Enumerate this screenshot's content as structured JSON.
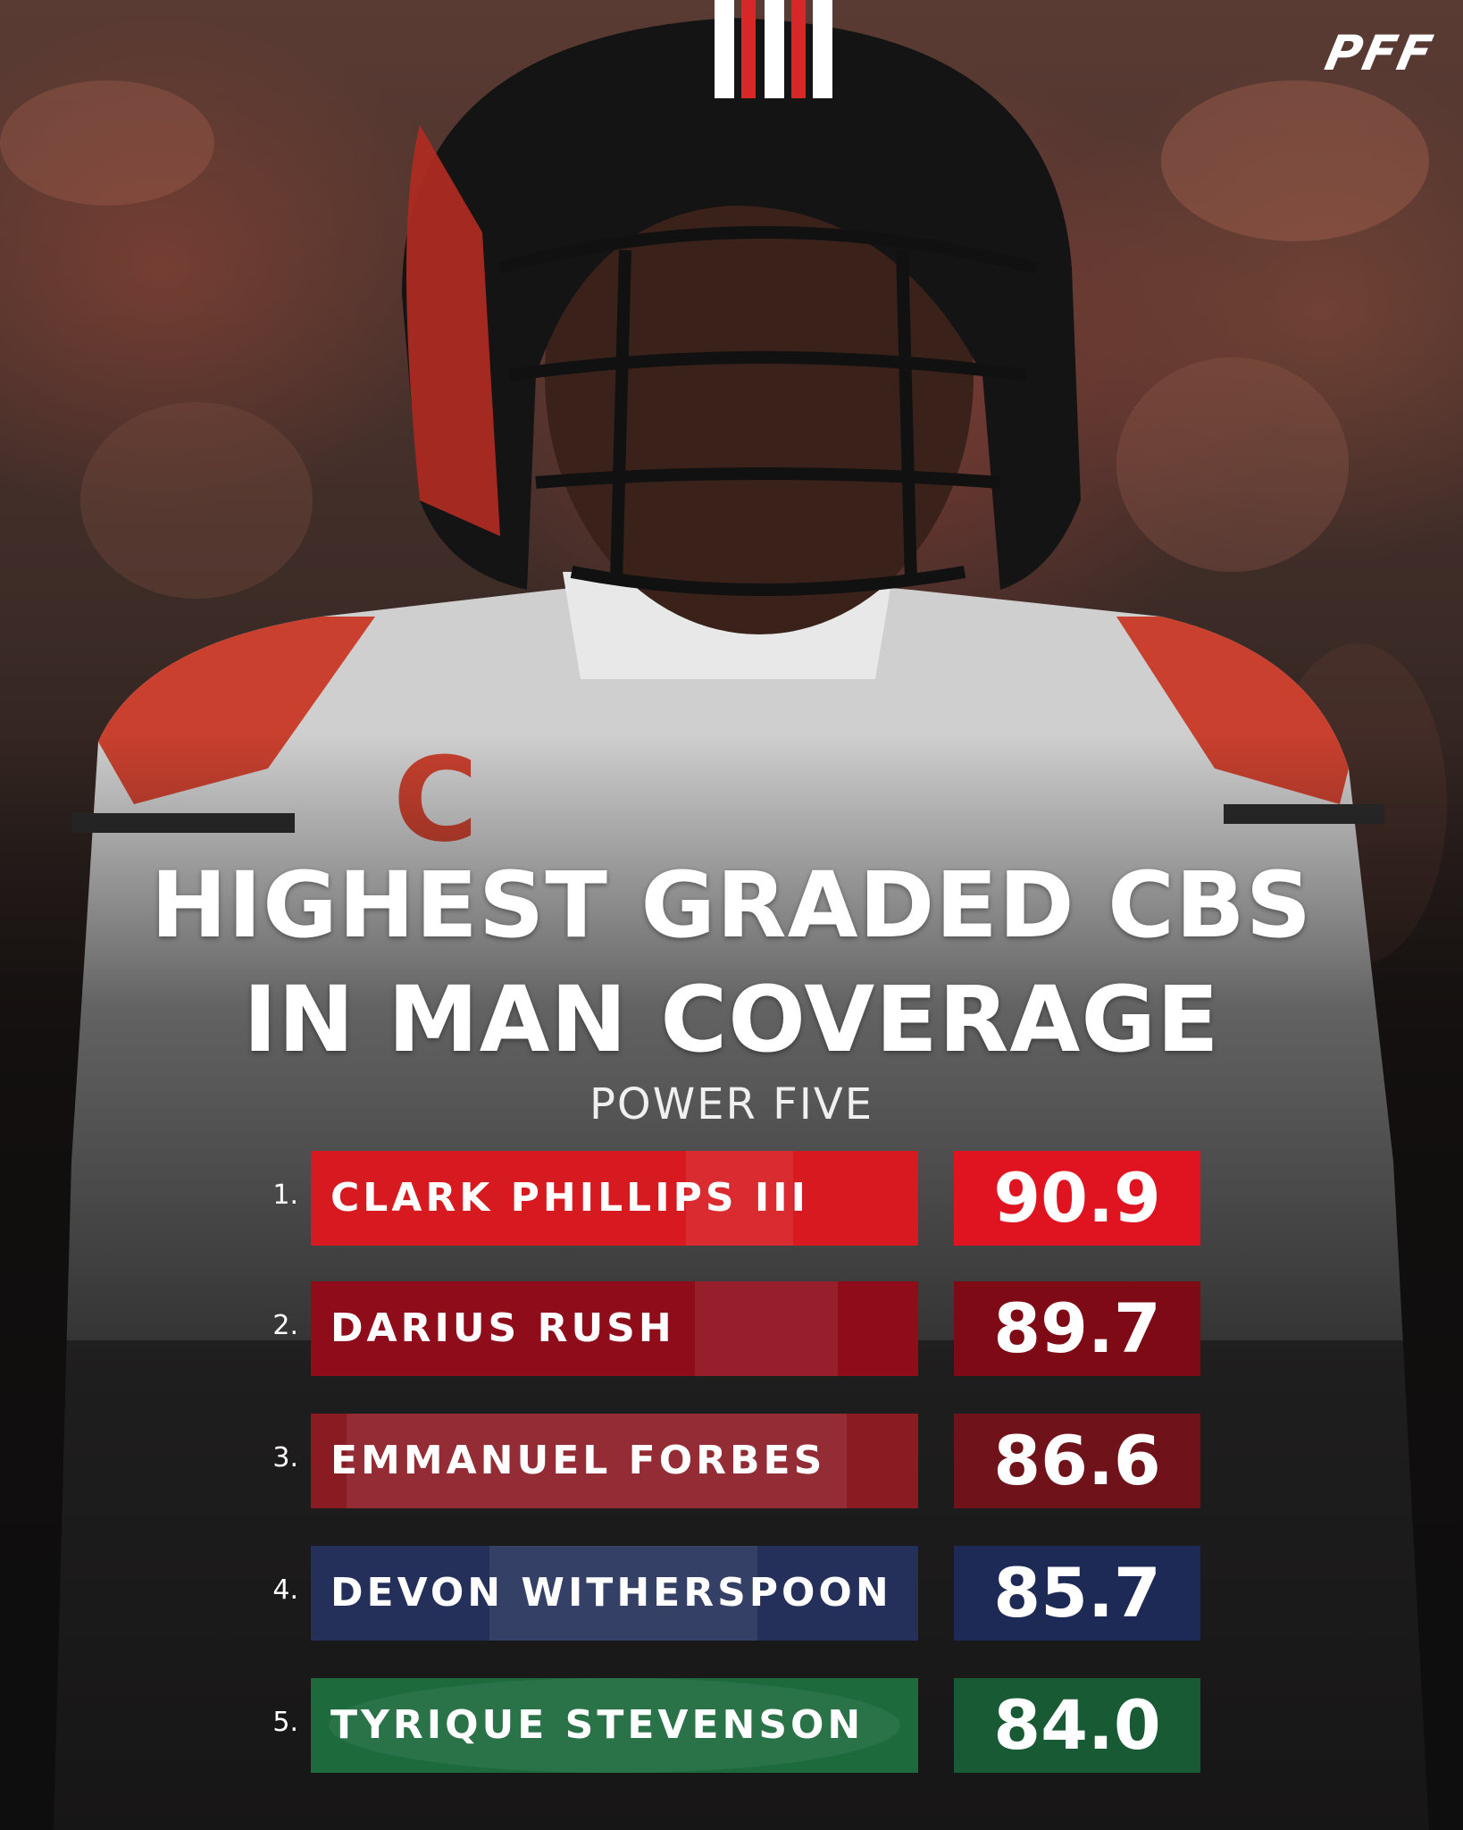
{
  "brand": {
    "logo_text": "PFF"
  },
  "title": {
    "line1": "HIGHEST GRADED CBS",
    "line2": "IN MAN COVERAGE"
  },
  "subtitle": "POWER FIVE",
  "colors": {
    "red": "#d71920",
    "crimson": "#9b0f1c",
    "maroon": "#82141e",
    "navy": "#1f2d55",
    "green": "#1d6a3d"
  },
  "rankings": [
    {
      "rank": "1.",
      "name": "CLARK PHILLIPS III",
      "grade": "90.9",
      "name_bg": "#d71920",
      "grade_bg": "#e01320"
    },
    {
      "rank": "2.",
      "name": "DARIUS RUSH",
      "grade": "89.7",
      "name_bg": "#8f0d1b",
      "grade_bg": "#7d0a15"
    },
    {
      "rank": "3.",
      "name": "EMMANUEL FORBES",
      "grade": "86.6",
      "name_bg": "#8a1b23",
      "grade_bg": "#70121a"
    },
    {
      "rank": "4.",
      "name": "DEVON WITHERSPOON",
      "grade": "85.7",
      "name_bg": "#24305a",
      "grade_bg": "#1c2a55"
    },
    {
      "rank": "5.",
      "name": "TYRIQUE STEVENSON",
      "grade": "84.0",
      "name_bg": "#1d6a3d",
      "grade_bg": "#175a34"
    }
  ]
}
